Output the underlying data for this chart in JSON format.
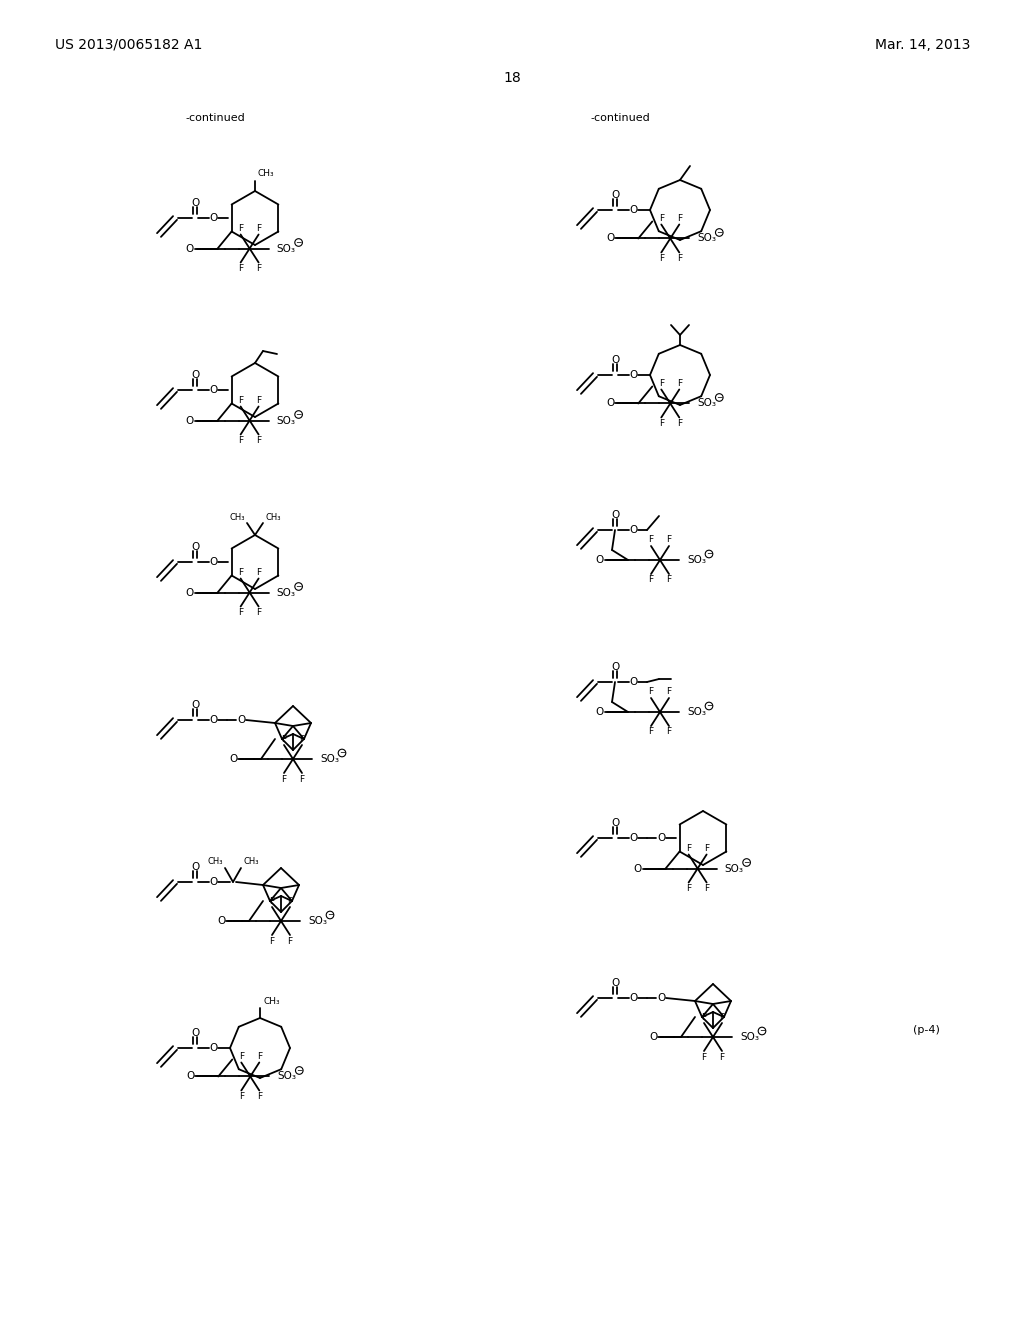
{
  "bg": "#ffffff",
  "header_left": "US 2013/0065182 A1",
  "header_right": "Mar. 14, 2013",
  "page_num": "18",
  "continued": "-continued",
  "note": "(p-4)"
}
